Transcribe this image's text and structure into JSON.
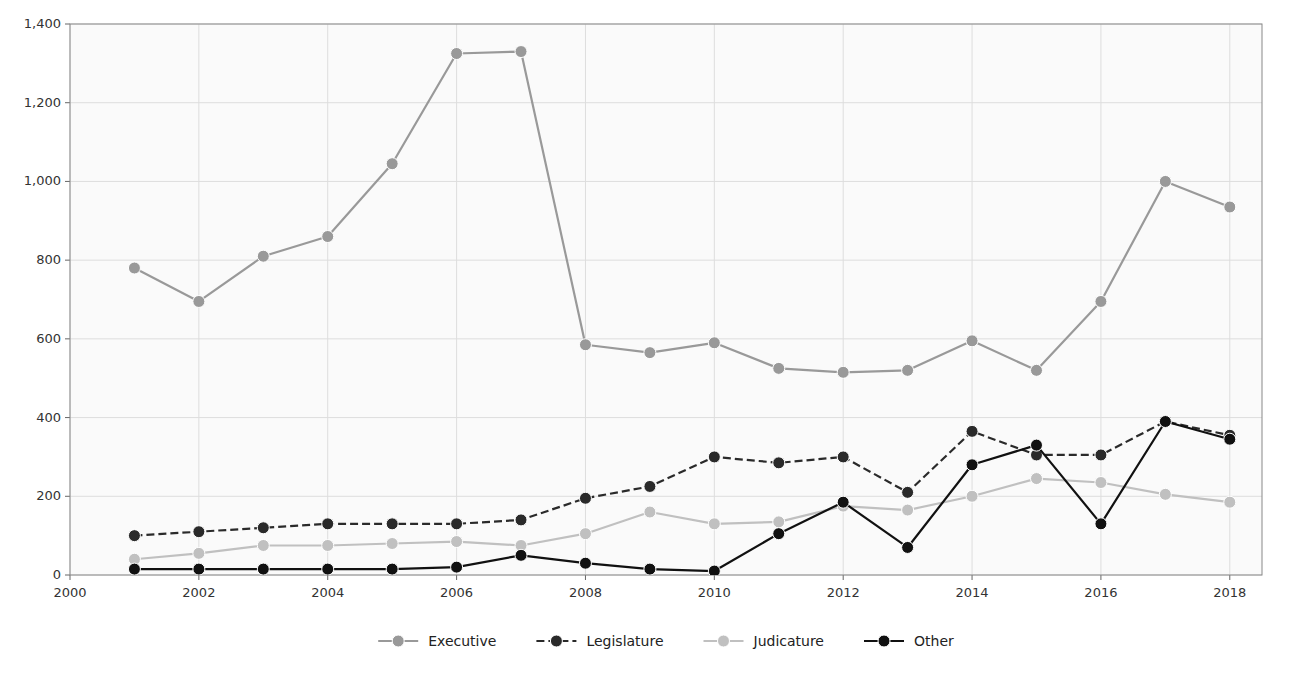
{
  "chart_data": {
    "type": "line",
    "x": [
      2001,
      2002,
      2003,
      2004,
      2005,
      2006,
      2007,
      2008,
      2009,
      2010,
      2011,
      2012,
      2013,
      2014,
      2015,
      2016,
      2017,
      2018
    ],
    "series": [
      {
        "name": "Executive",
        "color": "#999999",
        "line_style": "solid",
        "marker": "circle",
        "values": [
          780,
          695,
          810,
          860,
          1045,
          1325,
          1330,
          585,
          565,
          590,
          525,
          515,
          520,
          595,
          520,
          695,
          1000,
          935
        ]
      },
      {
        "name": "Legislature",
        "color": "#2a2a2a",
        "line_style": "dashed",
        "marker": "circle",
        "values": [
          100,
          110,
          120,
          130,
          130,
          130,
          140,
          195,
          225,
          300,
          285,
          300,
          210,
          365,
          305,
          305,
          390,
          355
        ]
      },
      {
        "name": "Judicature",
        "color": "#c0c0c0",
        "line_style": "solid",
        "marker": "circle",
        "values": [
          40,
          55,
          75,
          75,
          80,
          85,
          75,
          105,
          160,
          130,
          135,
          175,
          165,
          200,
          245,
          235,
          205,
          185
        ]
      },
      {
        "name": "Other",
        "color": "#111111",
        "line_style": "solid",
        "marker": "circle",
        "values": [
          15,
          15,
          15,
          15,
          15,
          20,
          50,
          30,
          15,
          10,
          105,
          185,
          70,
          280,
          330,
          130,
          390,
          345
        ]
      }
    ],
    "xlim": [
      2000,
      2018.5
    ],
    "xticks": [
      2000,
      2002,
      2004,
      2006,
      2008,
      2010,
      2012,
      2014,
      2016,
      2018
    ],
    "ylim": [
      0,
      1400
    ],
    "yticks": [
      0,
      200,
      400,
      600,
      800,
      {
        "value": 1000,
        "label": "1,000"
      },
      {
        "value": 1200,
        "label": "1,200"
      },
      {
        "value": 1400,
        "label": "1,400"
      }
    ],
    "grid": true,
    "legend": "bottom"
  }
}
